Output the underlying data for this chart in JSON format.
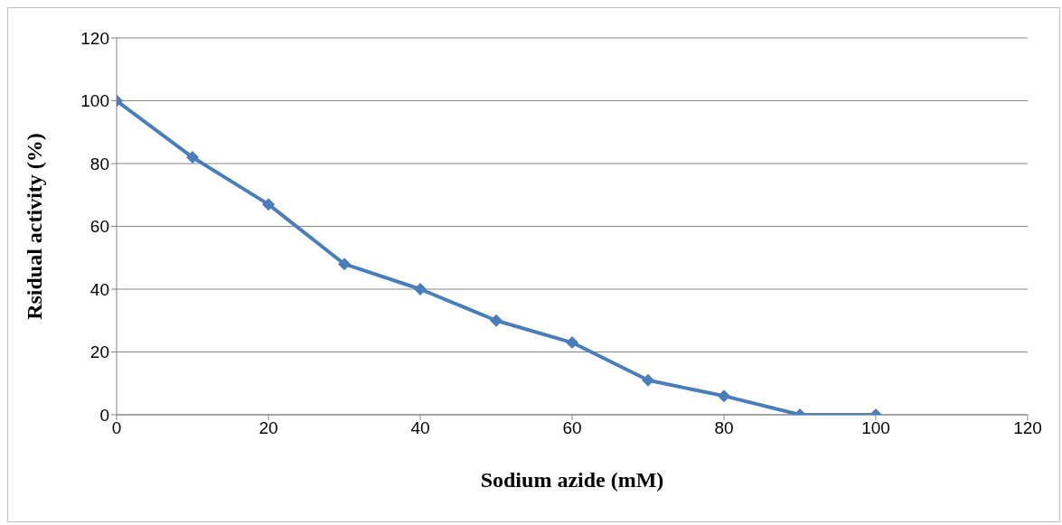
{
  "chart_data": {
    "type": "line",
    "xlabel": "Sodium azide (mM)",
    "ylabel": "Rsidual activity (%)",
    "x": [
      0,
      10,
      20,
      30,
      40,
      50,
      60,
      70,
      80,
      90,
      100
    ],
    "series": [
      {
        "color": "#4a7ebb",
        "values": [
          100,
          82,
          67,
          48,
          40,
          30,
          23,
          11,
          6,
          0,
          0
        ]
      }
    ],
    "xlim": [
      0,
      120
    ],
    "xticks": [
      0,
      20,
      40,
      60,
      80,
      100,
      120
    ],
    "ylim": [
      0,
      120
    ],
    "yticks": [
      0,
      20,
      40,
      60,
      80,
      100,
      120
    ],
    "grid": "y",
    "legend": false,
    "marker": "diamond",
    "line_style": "solid"
  }
}
